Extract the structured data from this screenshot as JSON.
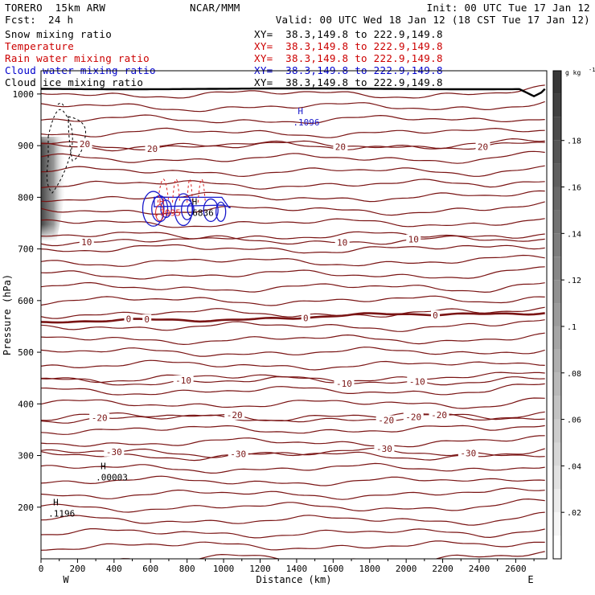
{
  "header": {
    "model": "TORERO  15km ARW",
    "center": "NCAR/MMM",
    "init": "Init: 00 UTC Tue 17 Jan 12",
    "fcst_label": "Fcst:",
    "fcst_value": "24 h",
    "valid": "Valid: 00 UTC Wed 18 Jan 12 (18 CST Tue 17 Jan 12)"
  },
  "fields": [
    {
      "name": "Snow mixing ratio",
      "xy": "",
      "color": "#000000"
    },
    {
      "name": "Temperature",
      "xy": "XY=  38.3,149.8 to 222.9,149.8",
      "color": "#cc0000"
    },
    {
      "name": "Rain water mixing ratio",
      "xy": "XY=  38.3,149.8 to 222.9,149.8",
      "color": "#cc0000"
    },
    {
      "name": "Cloud water mixing ratio",
      "xy": "XY=  38.3,149.8 to 222.9,149.8",
      "color": "#0000cc"
    },
    {
      "name": "Cloud ice mixing ratio",
      "xy": "XY=  38.3,149.8 to 222.9,149.8",
      "color": "#000000"
    }
  ],
  "snow_xy": "XY=  38.3,149.8 to 222.9,149.8",
  "colors": {
    "isotherm": "#7a1414",
    "freezing": "#7a1414",
    "rain": "#dd2222",
    "cloud_water": "#1a1acc",
    "ice": "#000000",
    "ground": "#000000"
  },
  "chart_data": {
    "type": "contour-cross-section",
    "title": "Snow mixing ratio",
    "xlabel": "Distance (km)",
    "ylabel": "Pressure (hPa)",
    "xlim": [
      0,
      2770
    ],
    "ylim": [
      1045,
      100
    ],
    "x_ticks": [
      0,
      200,
      400,
      600,
      800,
      1000,
      1200,
      1400,
      1600,
      1800,
      2000,
      2200,
      2400,
      2600
    ],
    "y_ticks": [
      200,
      300,
      400,
      500,
      600,
      700,
      800,
      900,
      1000
    ],
    "x_end_labels": {
      "left": "W",
      "right": "E"
    },
    "colorbar": {
      "unit": "g kg",
      "unit_exp": "-1",
      "min": 0,
      "max": 0.21,
      "ticks": [
        0.02,
        0.04,
        0.06,
        0.08,
        0.1,
        0.12,
        0.14,
        0.16,
        0.18
      ],
      "tick_labels": [
        ".02",
        ".04",
        ".06",
        ".08",
        ".1",
        ".12",
        ".14",
        ".16",
        ".18"
      ]
    },
    "temperature_contours": [
      {
        "label": "-30",
        "base_p": 305,
        "label_x": [
          400,
          1080,
          1880,
          2340
        ]
      },
      {
        "label": "-20",
        "base_p": 372,
        "label_x": [
          320,
          1060,
          1890,
          2040,
          2180
        ]
      },
      {
        "label": "-10",
        "base_p": 444,
        "label_x": [
          780,
          1660,
          2060
        ]
      },
      {
        "label": "0",
        "base_p": 569,
        "label_x": [
          480,
          580,
          1450,
          2160
        ],
        "freezing": true
      },
      {
        "label": "10",
        "base_p": 716,
        "label_x": [
          250,
          1650,
          2040
        ]
      },
      {
        "label": "20",
        "base_p": 900,
        "label_x": [
          240,
          610,
          1640,
          2420
        ]
      }
    ],
    "extrema_labels": [
      {
        "letter": "H",
        "value": ".1196",
        "x": 40,
        "p": 188,
        "color": "#000000"
      },
      {
        "letter": "H",
        "value": ".00003",
        "x": 300,
        "p": 258,
        "color": "#000000"
      },
      {
        "letter": "H",
        "value": ".1096",
        "x": 1380,
        "p": 945,
        "color": "#1a1acc"
      },
      {
        "letter": "H",
        "value": ".7095",
        "x": 620,
        "p": 770,
        "color": "#dd2222"
      },
      {
        "letter": "H",
        "value": ".6836",
        "x": 800,
        "p": 770,
        "color": "#000000"
      }
    ],
    "ground_pressure": 1010,
    "terrain_peak_x": 2700
  }
}
